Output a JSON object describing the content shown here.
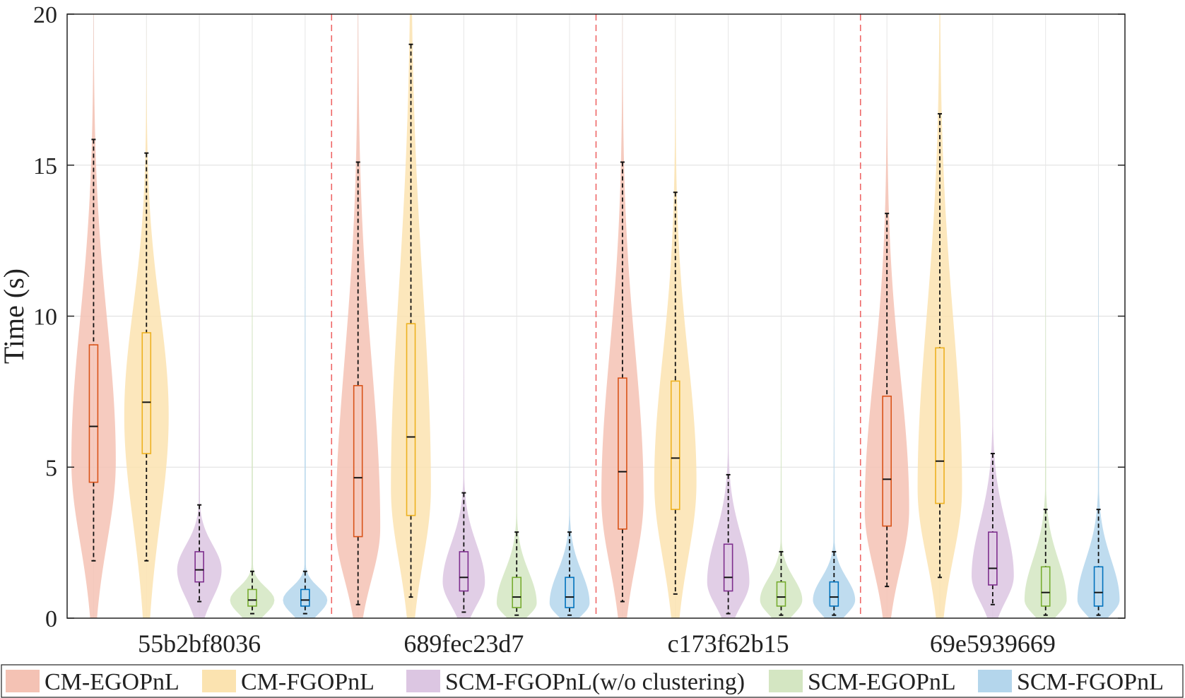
{
  "chart_data": {
    "type": "violin",
    "ylabel": "Time (s)",
    "xlabel": "",
    "ylim": [
      0,
      20
    ],
    "yticks": [
      "0",
      "5",
      "10",
      "15",
      "20"
    ],
    "grid": true,
    "legend_position": "bottom",
    "categories": [
      "55b2bf8036",
      "689fec23d7",
      "c173f62b15",
      "69e5939669"
    ],
    "series": [
      {
        "name": "CM-EGOPnL",
        "fill": "#f4c2b4",
        "edge": "#d95319",
        "stats": [
          {
            "min": 1.9,
            "q1": 4.5,
            "median": 6.35,
            "q3": 9.05,
            "max": 15.85,
            "vmax": 20,
            "mode": 5.2,
            "peak_width": 1.0
          },
          {
            "min": 0.45,
            "q1": 2.7,
            "median": 4.65,
            "q3": 7.7,
            "max": 15.1,
            "vmax": 20,
            "mode": 3.0,
            "peak_width": 1.0
          },
          {
            "min": 0.55,
            "q1": 2.95,
            "median": 4.85,
            "q3": 7.95,
            "max": 15.1,
            "vmax": 20,
            "mode": 4.0,
            "peak_width": 0.95
          },
          {
            "min": 1.05,
            "q1": 3.05,
            "median": 4.6,
            "q3": 7.35,
            "max": 13.4,
            "vmax": 18.5,
            "mode": 3.6,
            "peak_width": 1.0
          }
        ]
      },
      {
        "name": "CM-FGOPnL",
        "fill": "#fbe3b0",
        "edge": "#edb120",
        "stats": [
          {
            "min": 1.9,
            "q1": 5.45,
            "median": 7.15,
            "q3": 9.45,
            "max": 15.4,
            "vmax": 19.8,
            "mode": 6.7,
            "peak_width": 1.0
          },
          {
            "min": 0.7,
            "q1": 3.4,
            "median": 6.0,
            "q3": 9.75,
            "max": 19.0,
            "vmax": 20,
            "mode": 4.3,
            "peak_width": 0.9
          },
          {
            "min": 0.8,
            "q1": 3.6,
            "median": 5.3,
            "q3": 7.85,
            "max": 14.1,
            "vmax": 20,
            "mode": 4.5,
            "peak_width": 0.95
          },
          {
            "min": 1.35,
            "q1": 3.8,
            "median": 5.2,
            "q3": 8.95,
            "max": 16.7,
            "vmax": 20,
            "mode": 4.3,
            "peak_width": 1.0
          }
        ]
      },
      {
        "name": "SCM-FGOPnL(w/o clustering)",
        "fill": "#dcc6e2",
        "edge": "#7e2f8e",
        "stats": [
          {
            "min": 0.55,
            "q1": 1.2,
            "median": 1.6,
            "q3": 2.2,
            "max": 3.75,
            "vmax": 13.5,
            "mode": 1.6,
            "peak_width": 1.0
          },
          {
            "min": 0.2,
            "q1": 0.9,
            "median": 1.35,
            "q3": 2.2,
            "max": 4.15,
            "vmax": 11.5,
            "mode": 1.2,
            "peak_width": 0.95
          },
          {
            "min": 0.15,
            "q1": 0.9,
            "median": 1.35,
            "q3": 2.45,
            "max": 4.75,
            "vmax": 10.5,
            "mode": 1.2,
            "peak_width": 0.95
          },
          {
            "min": 0.45,
            "q1": 1.1,
            "median": 1.65,
            "q3": 2.85,
            "max": 5.45,
            "vmax": 13.0,
            "mode": 1.4,
            "peak_width": 0.95
          }
        ]
      },
      {
        "name": "SCM-EGOPnL",
        "fill": "#d4e6c2",
        "edge": "#77ac30",
        "stats": [
          {
            "min": 0.15,
            "q1": 0.4,
            "median": 0.6,
            "q3": 0.95,
            "max": 1.55,
            "vmax": 19.0,
            "mode": 0.6,
            "peak_width": 1.0
          },
          {
            "min": 0.1,
            "q1": 0.35,
            "median": 0.7,
            "q3": 1.35,
            "max": 2.85,
            "vmax": 6.5,
            "mode": 0.5,
            "peak_width": 0.9
          },
          {
            "min": 0.1,
            "q1": 0.4,
            "median": 0.7,
            "q3": 1.2,
            "max": 2.2,
            "vmax": 10.0,
            "mode": 0.6,
            "peak_width": 0.95
          },
          {
            "min": 0.1,
            "q1": 0.4,
            "median": 0.85,
            "q3": 1.7,
            "max": 3.6,
            "vmax": 15.0,
            "mode": 0.6,
            "peak_width": 0.95
          }
        ]
      },
      {
        "name": "SCM-FGOPnL",
        "fill": "#b4d6ec",
        "edge": "#0072bd",
        "stats": [
          {
            "min": 0.15,
            "q1": 0.4,
            "median": 0.6,
            "q3": 0.95,
            "max": 1.55,
            "vmax": 19.0,
            "mode": 0.6,
            "peak_width": 1.0
          },
          {
            "min": 0.1,
            "q1": 0.35,
            "median": 0.7,
            "q3": 1.35,
            "max": 2.85,
            "vmax": 6.5,
            "mode": 0.5,
            "peak_width": 0.9
          },
          {
            "min": 0.1,
            "q1": 0.4,
            "median": 0.7,
            "q3": 1.2,
            "max": 2.2,
            "vmax": 10.0,
            "mode": 0.6,
            "peak_width": 0.95
          },
          {
            "min": 0.1,
            "q1": 0.4,
            "median": 0.85,
            "q3": 1.7,
            "max": 3.6,
            "vmax": 15.0,
            "mode": 0.6,
            "peak_width": 0.95
          }
        ]
      }
    ],
    "separator_color": "#ee6666"
  }
}
